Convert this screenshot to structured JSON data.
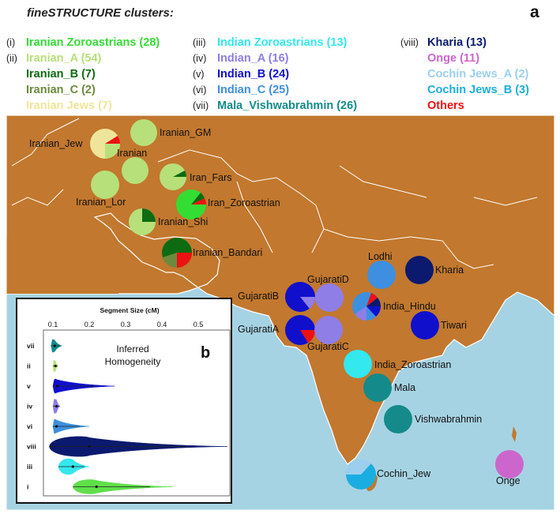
{
  "header": {
    "title": "fineSTRUCTURE clusters:",
    "panel_a": "a"
  },
  "legend": {
    "col1": [
      {
        "num": "(i)",
        "label": "Iranian Zoroastrians (28)",
        "color": "#33dd33"
      },
      {
        "num": "(ii)",
        "label": "Iranian_A (54)",
        "color": "#b7e07a"
      },
      {
        "num": "",
        "label": "Iranian_B (7)",
        "color": "#0d6b12"
      },
      {
        "num": "",
        "label": "Iranian_C (2)",
        "color": "#6c8a3c"
      },
      {
        "num": "",
        "label": "Iranian Jews (7)",
        "color": "#efe59a"
      }
    ],
    "col2": [
      {
        "num": "(iii)",
        "label": "Indian Zoroastrians (13)",
        "color": "#33e8ee"
      },
      {
        "num": "(iv)",
        "label": "Indian_A (16)",
        "color": "#8e7ee6"
      },
      {
        "num": "(v)",
        "label": "Indian_B (24)",
        "color": "#1010cc"
      },
      {
        "num": "(vi)",
        "label": "Indian_C (25)",
        "color": "#3e8fe0"
      },
      {
        "num": "(vii)",
        "label": "Mala_Vishwabrahmin (26)",
        "color": "#148a8a"
      }
    ],
    "col3": [
      {
        "num": "(viii)",
        "label": "Kharia (13)",
        "color": "#0b1a6e"
      },
      {
        "num": "",
        "label": "Onge (11)",
        "color": "#cc66cc"
      },
      {
        "num": "",
        "label": "Cochin Jews_A (2)",
        "color": "#9ccfee"
      },
      {
        "num": "",
        "label": "Cochin Jews_B (3)",
        "color": "#1aaee0"
      },
      {
        "num": "",
        "label": "Others",
        "color": "#ee1111"
      }
    ]
  },
  "map": {
    "land_color": "#c2782e",
    "sea_color": "#a6d3e3",
    "populations": [
      {
        "name": "Iranian_GM",
        "color": "#b7e07a"
      },
      {
        "name": "Iranian_Jew",
        "color": "#efe59a"
      },
      {
        "name": "Iranian",
        "color": "#b7e07a"
      },
      {
        "name": "Iran_Fars",
        "color": "#b7e07a"
      },
      {
        "name": "Iranian_Lor",
        "color": "#b7e07a"
      },
      {
        "name": "Iran_Zoroastrian",
        "color": "#33dd33"
      },
      {
        "name": "Iranian_Shi",
        "color": "#b7e07a"
      },
      {
        "name": "Iranian_Bandari",
        "color": "#0d6b12"
      },
      {
        "name": "GujaratiD",
        "color": "#8e7ee6"
      },
      {
        "name": "GujaratiB",
        "color": "#1010cc"
      },
      {
        "name": "GujaratiA",
        "color": "#1010cc"
      },
      {
        "name": "GujaratiC",
        "color": "#8e7ee6"
      },
      {
        "name": "Lodhi",
        "color": "#3e8fe0"
      },
      {
        "name": "Kharia",
        "color": "#0b1a6e"
      },
      {
        "name": "India_Hindu",
        "color": "#3e8fe0"
      },
      {
        "name": "Tiwari",
        "color": "#1010cc"
      },
      {
        "name": "India_Zoroastrian",
        "color": "#33e8ee"
      },
      {
        "name": "Mala",
        "color": "#148a8a"
      },
      {
        "name": "Vishwabrahmin",
        "color": "#148a8a"
      },
      {
        "name": "Cochin_Jew",
        "color": "#1aaee0"
      },
      {
        "name": "Onge",
        "color": "#cc66cc"
      }
    ]
  },
  "chart_data": {
    "type": "violin",
    "title": "Segment Size (cM)",
    "annotation": "Inferred\nHomogeneity",
    "annotation_line1": "Inferred",
    "annotation_line2": "Homogeneity",
    "panel_label": "b",
    "x_ticks": [
      "0.1",
      "0.2",
      "0.3",
      "0.4",
      "0.5"
    ],
    "xlim": [
      0.1,
      0.5
    ],
    "categories": [
      "vii",
      "ii",
      "v",
      "iv",
      "vi",
      "viii",
      "iii",
      "i"
    ],
    "series": [
      {
        "category": "vii",
        "color": "#148a8a",
        "min": 0.095,
        "max": 0.125,
        "median": 0.105
      },
      {
        "category": "ii",
        "color": "#b7e07a",
        "min": 0.1,
        "max": 0.115,
        "median": 0.107
      },
      {
        "category": "v",
        "color": "#1010cc",
        "min": 0.1,
        "max": 0.27,
        "median": 0.112
      },
      {
        "category": "iv",
        "color": "#8e7ee6",
        "min": 0.1,
        "max": 0.12,
        "median": 0.11
      },
      {
        "category": "vi",
        "color": "#3e8fe0",
        "min": 0.1,
        "max": 0.2,
        "median": 0.11
      },
      {
        "category": "viii",
        "color": "#0b1a6e",
        "min": 0.09,
        "max": 0.58,
        "median": 0.2
      },
      {
        "category": "iii",
        "color": "#33e8ee",
        "min": 0.115,
        "max": 0.2,
        "median": 0.155
      },
      {
        "category": "i",
        "color": "#5fe04a",
        "min": 0.155,
        "max": 0.43,
        "median": 0.22
      }
    ]
  }
}
